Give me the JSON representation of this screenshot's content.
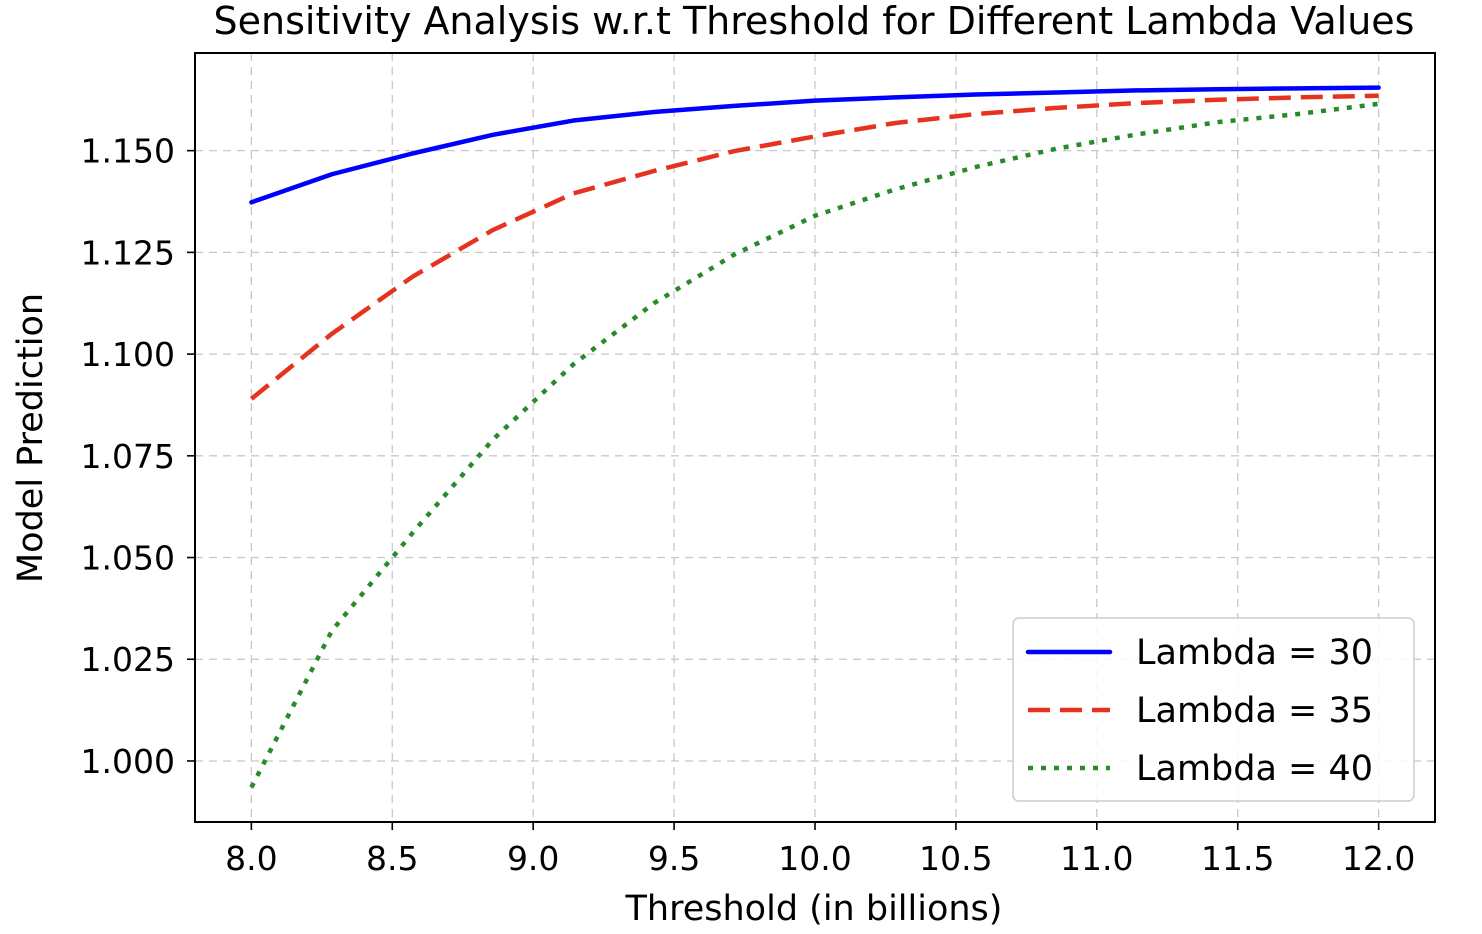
{
  "chart_data": {
    "type": "line",
    "title": "Sensitivity Analysis w.r.t Threshold for Different Lambda Values",
    "xlabel": "Threshold (in billions)",
    "ylabel": "Model Prediction",
    "xlim": [
      7.8,
      12.2
    ],
    "ylim": [
      0.985,
      1.174
    ],
    "xticks": [
      8.0,
      8.5,
      9.0,
      9.5,
      10.0,
      10.5,
      11.0,
      11.5,
      12.0
    ],
    "xtick_labels": [
      "8.0",
      "8.5",
      "9.0",
      "9.5",
      "10.0",
      "10.5",
      "11.0",
      "11.5",
      "12.0"
    ],
    "yticks": [
      1.0,
      1.025,
      1.05,
      1.075,
      1.1,
      1.125,
      1.15
    ],
    "ytick_labels": [
      "1.000",
      "1.025",
      "1.050",
      "1.075",
      "1.100",
      "1.125",
      "1.150"
    ],
    "grid": true,
    "legend_position": "lower-right",
    "x": [
      8.0,
      8.2857,
      8.5714,
      8.8571,
      9.1429,
      9.4286,
      9.7143,
      10.0,
      10.2857,
      10.5714,
      10.8571,
      11.1429,
      11.4286,
      11.7143,
      12.0
    ],
    "series": [
      {
        "name": "Lambda = 30",
        "color": "#0000ff",
        "style": "solid",
        "values": [
          1.1373,
          1.1442,
          1.1493,
          1.1539,
          1.1574,
          1.1595,
          1.161,
          1.1623,
          1.1631,
          1.1638,
          1.1643,
          1.1648,
          1.1651,
          1.1653,
          1.1655
        ]
      },
      {
        "name": "Lambda = 35",
        "color": "#e53320",
        "style": "dashed",
        "values": [
          1.089,
          1.105,
          1.119,
          1.1305,
          1.1395,
          1.145,
          1.1499,
          1.1535,
          1.1568,
          1.159,
          1.1605,
          1.1617,
          1.1625,
          1.1631,
          1.1635
        ]
      },
      {
        "name": "Lambda = 40",
        "color": "#2a8a2a",
        "style": "dotted",
        "values": [
          0.9935,
          1.032,
          1.056,
          1.079,
          1.0975,
          1.1125,
          1.1245,
          1.134,
          1.1405,
          1.146,
          1.1505,
          1.154,
          1.157,
          1.159,
          1.1615
        ]
      }
    ]
  }
}
